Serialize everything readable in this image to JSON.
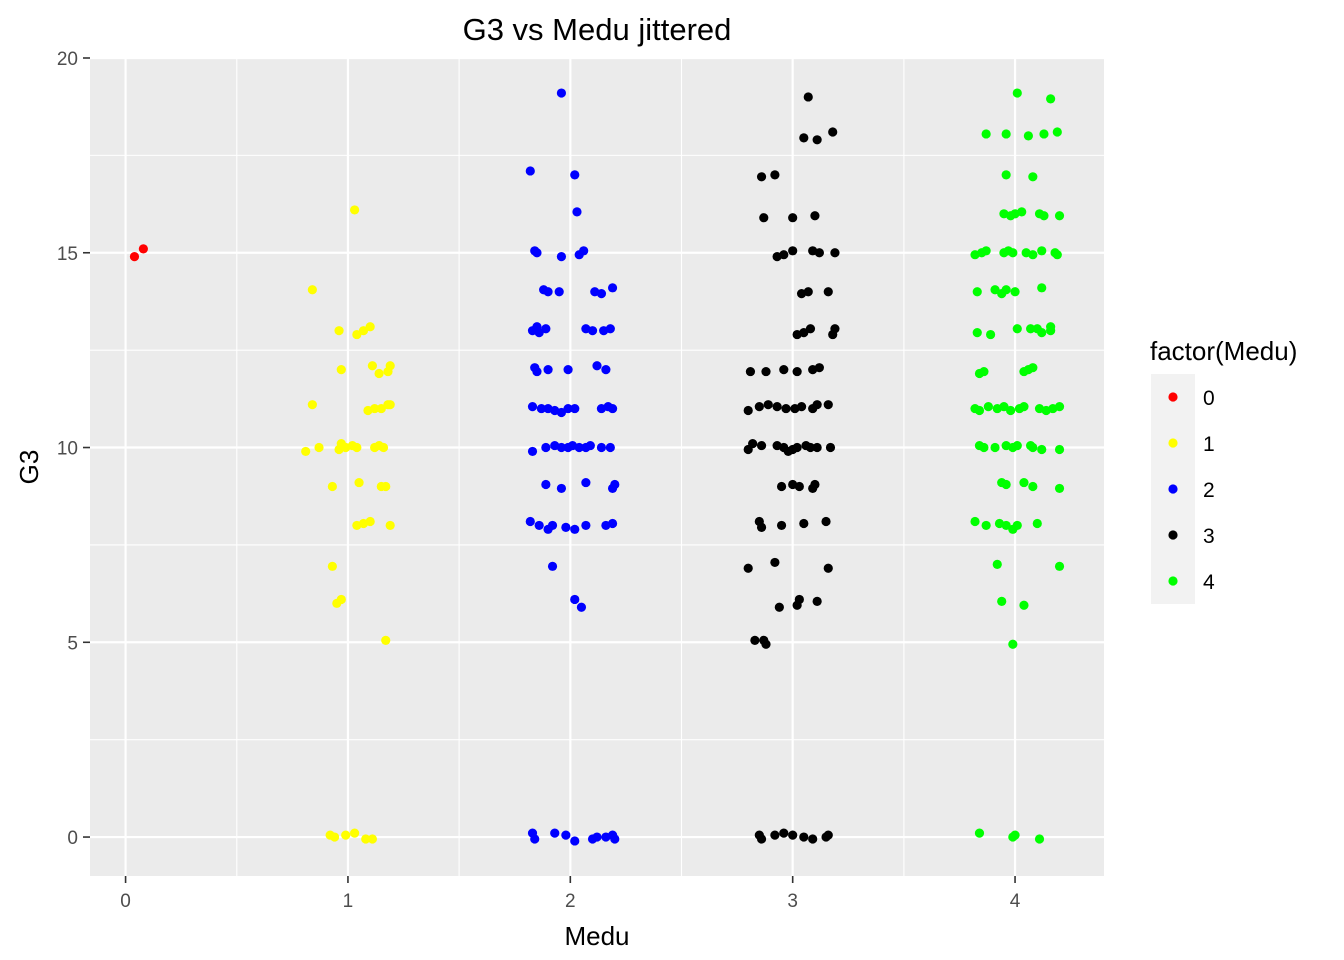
{
  "chart_data": {
    "type": "scatter",
    "title": "G3 vs Medu jittered",
    "xlabel": "Medu",
    "ylabel": "G3",
    "xlim": [
      -0.16,
      4.4
    ],
    "ylim": [
      -1,
      20
    ],
    "x_ticks": [
      0,
      1,
      2,
      3,
      4
    ],
    "y_ticks": [
      0,
      5,
      10,
      15,
      20
    ],
    "grid": true,
    "panel_background": "#ebebeb",
    "grid_color": "#ffffff",
    "legend": {
      "title": "factor(Medu)",
      "placement": "right",
      "background": "#f2f2f2"
    },
    "series": [
      {
        "name": "0",
        "color": "#ff0000",
        "points": [
          [
            0.04,
            14.9
          ],
          [
            0.08,
            15.1
          ]
        ]
      },
      {
        "name": "1",
        "color": "#ffff00",
        "points": [
          [
            1.03,
            16.1
          ],
          [
            0.84,
            14.05
          ],
          [
            0.96,
            13.0
          ],
          [
            1.04,
            12.9
          ],
          [
            1.07,
            13.0
          ],
          [
            1.1,
            13.1
          ],
          [
            0.97,
            12.0
          ],
          [
            1.11,
            12.1
          ],
          [
            1.14,
            11.9
          ],
          [
            1.18,
            11.95
          ],
          [
            1.19,
            12.1
          ],
          [
            0.84,
            11.1
          ],
          [
            1.09,
            10.95
          ],
          [
            1.12,
            11.0
          ],
          [
            1.15,
            11.0
          ],
          [
            1.18,
            11.1
          ],
          [
            1.19,
            11.1
          ],
          [
            0.81,
            9.9
          ],
          [
            0.87,
            10.0
          ],
          [
            0.96,
            9.95
          ],
          [
            0.97,
            10.1
          ],
          [
            0.99,
            10.0
          ],
          [
            1.02,
            10.05
          ],
          [
            1.04,
            10.0
          ],
          [
            1.12,
            10.0
          ],
          [
            1.14,
            10.05
          ],
          [
            1.16,
            10.0
          ],
          [
            0.93,
            9.0
          ],
          [
            1.05,
            9.1
          ],
          [
            1.15,
            9.0
          ],
          [
            1.17,
            9.0
          ],
          [
            1.04,
            8.0
          ],
          [
            1.07,
            8.05
          ],
          [
            1.1,
            8.1
          ],
          [
            1.19,
            8.0
          ],
          [
            0.93,
            6.95
          ],
          [
            0.95,
            6.0
          ],
          [
            0.97,
            6.1
          ],
          [
            1.17,
            5.05
          ],
          [
            0.92,
            0.05
          ],
          [
            0.94,
            0.0
          ],
          [
            0.99,
            0.05
          ],
          [
            1.03,
            0.1
          ],
          [
            1.08,
            -0.05
          ],
          [
            1.11,
            -0.05
          ]
        ]
      },
      {
        "name": "2",
        "color": "#0000ff",
        "points": [
          [
            1.96,
            19.1
          ],
          [
            1.82,
            17.1
          ],
          [
            2.02,
            17.0
          ],
          [
            2.03,
            16.05
          ],
          [
            1.84,
            15.05
          ],
          [
            1.85,
            15.0
          ],
          [
            1.96,
            14.9
          ],
          [
            2.04,
            14.95
          ],
          [
            2.06,
            15.05
          ],
          [
            1.88,
            14.05
          ],
          [
            1.9,
            14.0
          ],
          [
            1.95,
            14.0
          ],
          [
            2.11,
            14.0
          ],
          [
            2.14,
            13.95
          ],
          [
            2.19,
            14.1
          ],
          [
            1.83,
            13.0
          ],
          [
            1.85,
            13.1
          ],
          [
            1.86,
            12.95
          ],
          [
            1.89,
            13.05
          ],
          [
            2.07,
            13.05
          ],
          [
            2.1,
            13.0
          ],
          [
            2.15,
            13.0
          ],
          [
            2.18,
            13.05
          ],
          [
            1.84,
            12.05
          ],
          [
            1.85,
            11.95
          ],
          [
            1.9,
            12.0
          ],
          [
            1.99,
            12.0
          ],
          [
            2.12,
            12.1
          ],
          [
            2.16,
            12.0
          ],
          [
            1.83,
            11.05
          ],
          [
            1.87,
            11.0
          ],
          [
            1.9,
            11.0
          ],
          [
            1.93,
            10.95
          ],
          [
            1.96,
            10.9
          ],
          [
            1.99,
            11.0
          ],
          [
            2.02,
            11.0
          ],
          [
            2.14,
            11.0
          ],
          [
            2.17,
            11.05
          ],
          [
            2.19,
            11.0
          ],
          [
            1.83,
            9.9
          ],
          [
            1.89,
            10.0
          ],
          [
            1.93,
            10.05
          ],
          [
            1.96,
            10.0
          ],
          [
            1.99,
            10.0
          ],
          [
            2.01,
            10.05
          ],
          [
            2.04,
            10.0
          ],
          [
            2.07,
            10.0
          ],
          [
            2.09,
            10.05
          ],
          [
            2.14,
            10.0
          ],
          [
            2.18,
            10.0
          ],
          [
            1.89,
            9.05
          ],
          [
            1.96,
            8.95
          ],
          [
            2.07,
            9.1
          ],
          [
            2.19,
            8.95
          ],
          [
            2.2,
            9.05
          ],
          [
            1.82,
            8.1
          ],
          [
            1.86,
            8.0
          ],
          [
            1.9,
            7.9
          ],
          [
            1.92,
            8.0
          ],
          [
            1.98,
            7.95
          ],
          [
            2.02,
            7.9
          ],
          [
            2.07,
            8.0
          ],
          [
            2.16,
            8.0
          ],
          [
            2.19,
            8.05
          ],
          [
            1.92,
            6.95
          ],
          [
            2.02,
            6.1
          ],
          [
            2.05,
            5.9
          ],
          [
            1.83,
            0.1
          ],
          [
            1.84,
            -0.05
          ],
          [
            1.93,
            0.1
          ],
          [
            1.98,
            0.05
          ],
          [
            2.02,
            -0.1
          ],
          [
            2.1,
            -0.05
          ],
          [
            2.12,
            0.0
          ],
          [
            2.16,
            0.0
          ],
          [
            2.19,
            0.05
          ],
          [
            2.2,
            -0.05
          ]
        ]
      },
      {
        "name": "3",
        "color": "#000000",
        "points": [
          [
            3.07,
            19.0
          ],
          [
            3.05,
            17.95
          ],
          [
            3.11,
            17.9
          ],
          [
            3.18,
            18.1
          ],
          [
            2.86,
            16.95
          ],
          [
            2.92,
            17.0
          ],
          [
            2.87,
            15.9
          ],
          [
            3.0,
            15.9
          ],
          [
            3.1,
            15.95
          ],
          [
            2.93,
            14.9
          ],
          [
            2.96,
            14.95
          ],
          [
            3.0,
            15.05
          ],
          [
            3.09,
            15.05
          ],
          [
            3.12,
            15.0
          ],
          [
            3.19,
            15.0
          ],
          [
            3.04,
            13.95
          ],
          [
            3.07,
            14.0
          ],
          [
            3.16,
            14.0
          ],
          [
            3.02,
            12.9
          ],
          [
            3.05,
            12.95
          ],
          [
            3.08,
            13.05
          ],
          [
            3.18,
            12.9
          ],
          [
            3.19,
            13.05
          ],
          [
            2.81,
            11.95
          ],
          [
            2.88,
            11.95
          ],
          [
            2.96,
            12.0
          ],
          [
            3.02,
            11.95
          ],
          [
            3.09,
            12.0
          ],
          [
            3.12,
            12.05
          ],
          [
            2.8,
            10.95
          ],
          [
            2.85,
            11.05
          ],
          [
            2.89,
            11.1
          ],
          [
            2.93,
            11.05
          ],
          [
            2.97,
            11.0
          ],
          [
            3.01,
            11.0
          ],
          [
            3.04,
            11.05
          ],
          [
            3.09,
            11.0
          ],
          [
            3.11,
            11.1
          ],
          [
            3.16,
            11.1
          ],
          [
            2.8,
            9.95
          ],
          [
            2.82,
            10.1
          ],
          [
            2.86,
            10.05
          ],
          [
            2.93,
            10.05
          ],
          [
            2.96,
            10.0
          ],
          [
            2.98,
            9.9
          ],
          [
            3.0,
            9.95
          ],
          [
            3.02,
            10.0
          ],
          [
            3.06,
            10.05
          ],
          [
            3.08,
            10.0
          ],
          [
            3.11,
            10.0
          ],
          [
            3.17,
            10.0
          ],
          [
            2.95,
            9.0
          ],
          [
            3.0,
            9.05
          ],
          [
            3.03,
            9.0
          ],
          [
            3.09,
            8.95
          ],
          [
            3.1,
            9.05
          ],
          [
            2.85,
            8.1
          ],
          [
            2.86,
            7.95
          ],
          [
            2.95,
            8.0
          ],
          [
            3.05,
            8.05
          ],
          [
            3.15,
            8.1
          ],
          [
            2.8,
            6.9
          ],
          [
            2.92,
            7.05
          ],
          [
            3.16,
            6.9
          ],
          [
            2.94,
            5.9
          ],
          [
            3.02,
            5.95
          ],
          [
            3.03,
            6.1
          ],
          [
            3.11,
            6.05
          ],
          [
            2.83,
            5.05
          ],
          [
            2.87,
            5.05
          ],
          [
            2.88,
            4.95
          ],
          [
            2.85,
            0.05
          ],
          [
            2.86,
            -0.05
          ],
          [
            2.92,
            0.05
          ],
          [
            2.96,
            0.1
          ],
          [
            3.0,
            0.05
          ],
          [
            3.05,
            0.0
          ],
          [
            3.09,
            -0.05
          ],
          [
            3.15,
            0.0
          ],
          [
            3.16,
            0.05
          ]
        ]
      },
      {
        "name": "4",
        "color": "#00ff00",
        "points": [
          [
            4.01,
            19.1
          ],
          [
            4.16,
            18.95
          ],
          [
            3.87,
            18.05
          ],
          [
            3.96,
            18.05
          ],
          [
            4.06,
            18.0
          ],
          [
            4.13,
            18.05
          ],
          [
            4.19,
            18.1
          ],
          [
            3.96,
            17.0
          ],
          [
            4.08,
            16.95
          ],
          [
            3.95,
            16.0
          ],
          [
            3.98,
            15.95
          ],
          [
            4.0,
            16.0
          ],
          [
            4.03,
            16.05
          ],
          [
            4.11,
            16.0
          ],
          [
            4.13,
            15.95
          ],
          [
            4.2,
            15.95
          ],
          [
            3.82,
            14.95
          ],
          [
            3.85,
            15.0
          ],
          [
            3.87,
            15.05
          ],
          [
            3.95,
            15.0
          ],
          [
            3.97,
            15.05
          ],
          [
            3.99,
            15.0
          ],
          [
            4.05,
            15.0
          ],
          [
            4.08,
            14.95
          ],
          [
            4.12,
            15.05
          ],
          [
            4.18,
            15.0
          ],
          [
            4.19,
            14.95
          ],
          [
            3.83,
            14.0
          ],
          [
            3.91,
            14.05
          ],
          [
            3.94,
            13.95
          ],
          [
            3.96,
            14.05
          ],
          [
            4.0,
            14.0
          ],
          [
            4.12,
            14.1
          ],
          [
            3.83,
            12.95
          ],
          [
            3.89,
            12.9
          ],
          [
            4.01,
            13.05
          ],
          [
            4.07,
            13.05
          ],
          [
            4.1,
            13.05
          ],
          [
            4.12,
            12.95
          ],
          [
            4.16,
            13.0
          ],
          [
            4.16,
            13.1
          ],
          [
            3.84,
            11.9
          ],
          [
            3.86,
            11.95
          ],
          [
            4.04,
            11.95
          ],
          [
            4.06,
            12.0
          ],
          [
            4.08,
            12.05
          ],
          [
            3.82,
            11.0
          ],
          [
            3.84,
            10.95
          ],
          [
            3.88,
            11.05
          ],
          [
            3.92,
            11.0
          ],
          [
            3.95,
            11.05
          ],
          [
            3.98,
            10.95
          ],
          [
            4.02,
            11.0
          ],
          [
            4.04,
            11.05
          ],
          [
            4.11,
            11.0
          ],
          [
            4.14,
            10.95
          ],
          [
            4.17,
            11.0
          ],
          [
            4.2,
            11.05
          ],
          [
            3.84,
            10.05
          ],
          [
            3.86,
            10.0
          ],
          [
            3.91,
            10.0
          ],
          [
            3.96,
            10.05
          ],
          [
            3.99,
            10.0
          ],
          [
            4.01,
            10.05
          ],
          [
            4.07,
            10.05
          ],
          [
            4.08,
            10.0
          ],
          [
            4.12,
            9.95
          ],
          [
            4.2,
            9.95
          ],
          [
            3.94,
            9.1
          ],
          [
            3.96,
            9.05
          ],
          [
            4.04,
            9.1
          ],
          [
            4.08,
            9.0
          ],
          [
            4.2,
            8.95
          ],
          [
            3.82,
            8.1
          ],
          [
            3.87,
            8.0
          ],
          [
            3.93,
            8.05
          ],
          [
            3.96,
            8.0
          ],
          [
            3.99,
            7.9
          ],
          [
            4.01,
            8.0
          ],
          [
            4.1,
            8.05
          ],
          [
            3.92,
            7.0
          ],
          [
            4.2,
            6.95
          ],
          [
            3.94,
            6.05
          ],
          [
            4.04,
            5.95
          ],
          [
            3.99,
            4.95
          ],
          [
            3.84,
            0.1
          ],
          [
            3.99,
            0.0
          ],
          [
            4.0,
            0.05
          ],
          [
            4.11,
            -0.05
          ]
        ]
      }
    ]
  }
}
